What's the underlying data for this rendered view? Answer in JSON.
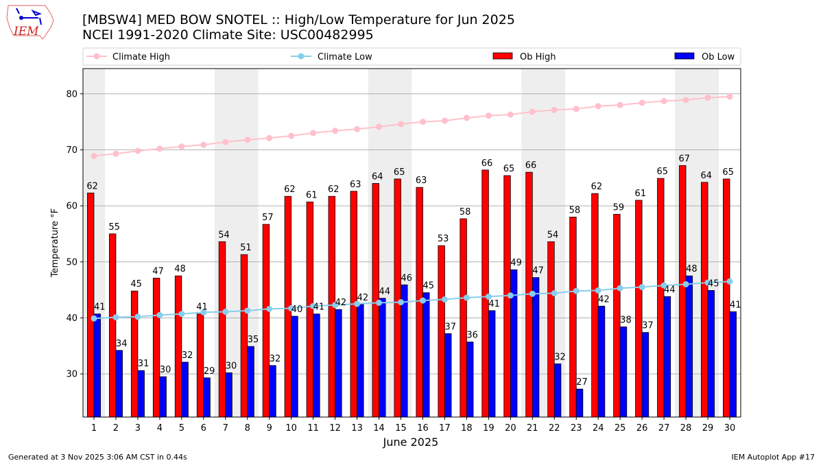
{
  "logo_text": "IEM",
  "chart_data": {
    "type": "bar",
    "title": "[MBSW4] MED BOW SNOTEL :: High/Low Temperature for Jun 2025",
    "subtitle": "NCEI 1991-2020 Climate Site: USC00482995",
    "xlabel": "June 2025",
    "ylabel": "Temperature °F",
    "ylim": [
      22.3,
      84.5
    ],
    "xlim": [
      0.5,
      30.5
    ],
    "yticks": [
      30,
      40,
      50,
      60,
      70,
      80
    ],
    "grid": true,
    "legend_placement": "top",
    "x": [
      1,
      2,
      3,
      4,
      5,
      6,
      7,
      8,
      9,
      10,
      11,
      12,
      13,
      14,
      15,
      16,
      17,
      18,
      19,
      20,
      21,
      22,
      23,
      24,
      25,
      26,
      27,
      28,
      29,
      30
    ],
    "weekend_days": [
      1,
      7,
      8,
      14,
      15,
      21,
      22,
      28,
      29
    ],
    "series": [
      {
        "name": "Climate High",
        "kind": "line",
        "color": "#ffc0cb",
        "values": [
          68.9,
          69.3,
          69.8,
          70.2,
          70.6,
          70.9,
          71.4,
          71.8,
          72.1,
          72.5,
          73.0,
          73.4,
          73.7,
          74.1,
          74.6,
          75.0,
          75.2,
          75.7,
          76.1,
          76.3,
          76.8,
          77.1,
          77.3,
          77.8,
          78.0,
          78.4,
          78.7,
          78.9,
          79.3,
          79.5
        ]
      },
      {
        "name": "Climate Low",
        "kind": "line",
        "color": "#87ceeb",
        "values": [
          39.9,
          40.1,
          40.2,
          40.5,
          40.7,
          41.0,
          41.1,
          41.3,
          41.6,
          41.7,
          42.1,
          42.3,
          42.5,
          42.7,
          42.8,
          43.1,
          43.3,
          43.6,
          43.8,
          44.0,
          44.3,
          44.4,
          44.8,
          44.9,
          45.3,
          45.5,
          45.8,
          46.0,
          46.3,
          46.5
        ]
      },
      {
        "name": "Ob High",
        "kind": "bar",
        "color": "#ff0000",
        "values": [
          62.3,
          55.0,
          44.8,
          47.1,
          47.5,
          40.7,
          53.6,
          51.3,
          56.7,
          61.7,
          60.7,
          61.7,
          62.6,
          64.0,
          64.8,
          63.3,
          52.9,
          57.7,
          66.4,
          65.4,
          66.0,
          53.6,
          58.0,
          62.2,
          58.5,
          61.0,
          64.9,
          67.2,
          64.2,
          64.8
        ]
      },
      {
        "name": "Ob Low",
        "kind": "bar",
        "color": "#0000ff",
        "values": [
          40.7,
          34.2,
          30.6,
          29.5,
          32.1,
          29.3,
          30.2,
          34.9,
          31.5,
          40.3,
          40.7,
          41.5,
          42.4,
          43.5,
          45.9,
          44.5,
          37.2,
          35.7,
          41.3,
          48.6,
          47.2,
          31.8,
          27.3,
          42.1,
          38.4,
          37.4,
          43.8,
          47.5,
          44.9,
          41.1
        ]
      }
    ]
  },
  "footer": {
    "left": "Generated at 3 Nov 2025 3:06 AM CST in 0.44s",
    "right": "IEM Autoplot App #17"
  }
}
